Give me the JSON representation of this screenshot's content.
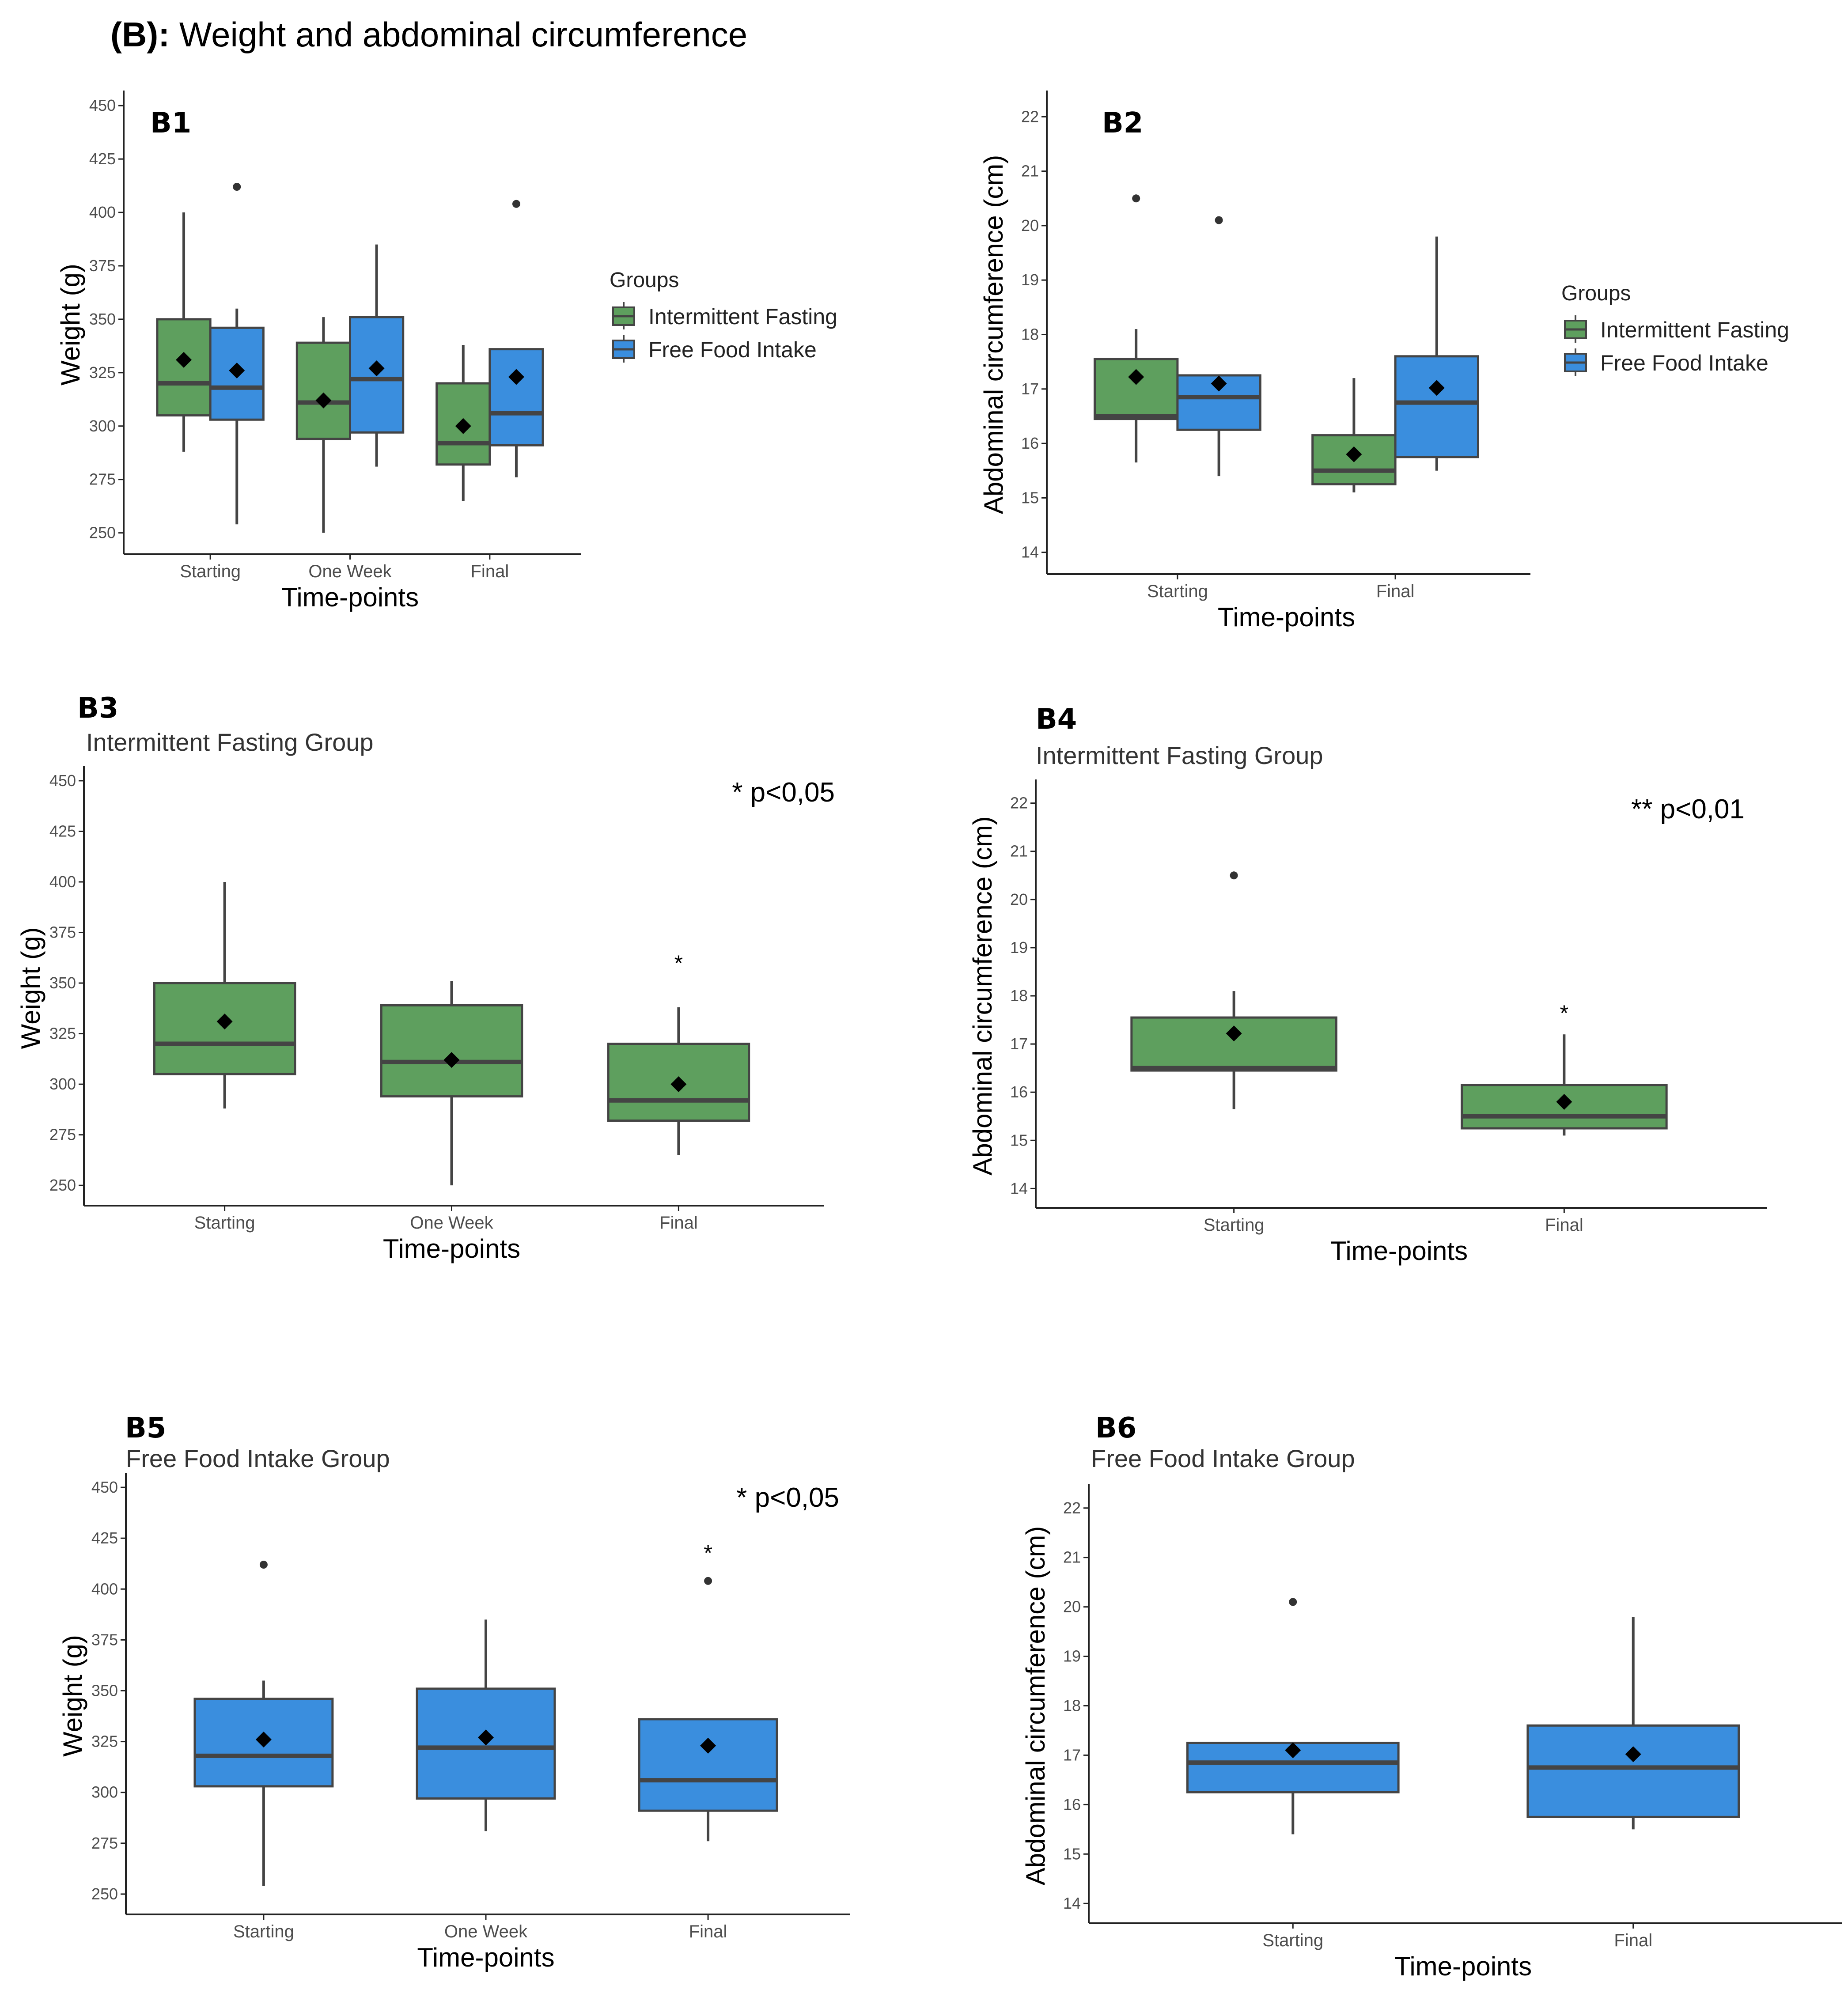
{
  "figure_title": {
    "prefix": "(B):",
    "text": " Weight and abdominal circumference"
  },
  "colors": {
    "if": "#5e9f5e",
    "ffi": "#3a8ede",
    "edge": "#444444",
    "axis": "#222222"
  },
  "chart_data": [
    {
      "panel": "B1",
      "type": "box",
      "subtitle": "",
      "xlabel": "Time-points",
      "ylabel": "Weight (g)",
      "ylim": [
        240,
        455
      ],
      "yticks": [
        "250",
        "275",
        "300",
        "325",
        "350",
        "375",
        "400",
        "425",
        "450"
      ],
      "categories": [
        "Starting",
        "One Week",
        "Final"
      ],
      "legend": {
        "title": "Groups",
        "position": "right",
        "items": [
          "Intermittent Fasting",
          "Free Food Intake"
        ]
      },
      "series": [
        {
          "name": "Intermittent Fasting",
          "color_key": "if",
          "boxes": [
            {
              "min": 288,
              "q1": 305,
              "median": 320,
              "q3": 350,
              "max": 400,
              "mean": 331,
              "outliers": []
            },
            {
              "min": 250,
              "q1": 294,
              "median": 311,
              "q3": 339,
              "max": 351,
              "mean": 312,
              "outliers": []
            },
            {
              "min": 265,
              "q1": 282,
              "median": 292,
              "q3": 320,
              "max": 338,
              "mean": 300,
              "outliers": []
            }
          ]
        },
        {
          "name": "Free Food Intake",
          "color_key": "ffi",
          "boxes": [
            {
              "min": 254,
              "q1": 303,
              "median": 318,
              "q3": 346,
              "max": 355,
              "mean": 326,
              "outliers": [
                412
              ]
            },
            {
              "min": 281,
              "q1": 297,
              "median": 322,
              "q3": 351,
              "max": 385,
              "mean": 327,
              "outliers": []
            },
            {
              "min": 276,
              "q1": 291,
              "median": 306,
              "q3": 336,
              "max": 336,
              "mean": 323,
              "outliers": [
                404
              ]
            }
          ]
        }
      ]
    },
    {
      "panel": "B2",
      "type": "box",
      "subtitle": "",
      "xlabel": "Time-points",
      "ylabel": "Abdominal circumference (cm)",
      "ylim": [
        13.6,
        22.4
      ],
      "yticks": [
        "14",
        "15",
        "16",
        "17",
        "18",
        "19",
        "20",
        "21",
        "22"
      ],
      "categories": [
        "Starting",
        "Final"
      ],
      "legend": {
        "title": "Groups",
        "position": "right",
        "items": [
          "Intermittent Fasting",
          "Free Food Intake"
        ]
      },
      "series": [
        {
          "name": "Intermittent Fasting",
          "color_key": "if",
          "boxes": [
            {
              "min": 15.65,
              "q1": 16.45,
              "median": 16.5,
              "q3": 17.55,
              "max": 18.1,
              "mean": 17.22,
              "outliers": [
                20.5
              ]
            },
            {
              "min": 15.1,
              "q1": 15.25,
              "median": 15.5,
              "q3": 16.15,
              "max": 17.2,
              "mean": 15.8,
              "outliers": []
            }
          ]
        },
        {
          "name": "Free Food Intake",
          "color_key": "ffi",
          "boxes": [
            {
              "min": 15.4,
              "q1": 16.25,
              "median": 16.85,
              "q3": 17.25,
              "max": 17.25,
              "mean": 17.1,
              "outliers": [
                20.1
              ]
            },
            {
              "min": 15.5,
              "q1": 15.75,
              "median": 16.75,
              "q3": 17.6,
              "max": 19.8,
              "mean": 17.02,
              "outliers": []
            }
          ]
        }
      ]
    },
    {
      "panel": "B3",
      "type": "box",
      "subtitle": "Intermittent Fasting Group",
      "xlabel": "Time-points",
      "ylabel": "Weight (g)",
      "ylim": [
        240,
        455
      ],
      "yticks": [
        "250",
        "275",
        "300",
        "325",
        "350",
        "375",
        "400",
        "425",
        "450"
      ],
      "categories": [
        "Starting",
        "One Week",
        "Final"
      ],
      "significance": "* p<0,05",
      "star_labels": [
        {
          "category": "Final",
          "text": "*",
          "value": 360
        }
      ],
      "series": [
        {
          "name": "Intermittent Fasting",
          "color_key": "if",
          "boxes": [
            {
              "min": 288,
              "q1": 305,
              "median": 320,
              "q3": 350,
              "max": 400,
              "mean": 331,
              "outliers": []
            },
            {
              "min": 250,
              "q1": 294,
              "median": 311,
              "q3": 339,
              "max": 351,
              "mean": 312,
              "outliers": []
            },
            {
              "min": 265,
              "q1": 282,
              "median": 292,
              "q3": 320,
              "max": 338,
              "mean": 300,
              "outliers": []
            }
          ]
        }
      ]
    },
    {
      "panel": "B4",
      "type": "box",
      "subtitle": "Intermittent Fasting Group",
      "xlabel": "Time-points",
      "ylabel": "Abdominal circumference (cm)",
      "ylim": [
        13.6,
        22.4
      ],
      "yticks": [
        "14",
        "15",
        "16",
        "17",
        "18",
        "19",
        "20",
        "21",
        "22"
      ],
      "categories": [
        "Starting",
        "Final"
      ],
      "significance": "** p<0,01",
      "star_labels": [
        {
          "category": "Final",
          "text": "*",
          "value": 17.65
        }
      ],
      "series": [
        {
          "name": "Intermittent Fasting",
          "color_key": "if",
          "boxes": [
            {
              "min": 15.65,
              "q1": 16.45,
              "median": 16.5,
              "q3": 17.55,
              "max": 18.1,
              "mean": 17.22,
              "outliers": [
                20.5
              ]
            },
            {
              "min": 15.1,
              "q1": 15.25,
              "median": 15.5,
              "q3": 16.15,
              "max": 17.2,
              "mean": 15.8,
              "outliers": []
            }
          ]
        }
      ]
    },
    {
      "panel": "B5",
      "type": "box",
      "subtitle": "Free Food Intake Group",
      "xlabel": "Time-points",
      "ylabel": "Weight (g)",
      "ylim": [
        240,
        455
      ],
      "yticks": [
        "250",
        "275",
        "300",
        "325",
        "350",
        "375",
        "400",
        "425",
        "450"
      ],
      "categories": [
        "Starting",
        "One Week",
        "Final"
      ],
      "significance": "* p<0,05",
      "star_labels": [
        {
          "category": "Final",
          "text": "*",
          "value": 418
        }
      ],
      "series": [
        {
          "name": "Free Food Intake",
          "color_key": "ffi",
          "boxes": [
            {
              "min": 254,
              "q1": 303,
              "median": 318,
              "q3": 346,
              "max": 355,
              "mean": 326,
              "outliers": [
                412
              ]
            },
            {
              "min": 281,
              "q1": 297,
              "median": 322,
              "q3": 351,
              "max": 385,
              "mean": 327,
              "outliers": []
            },
            {
              "min": 276,
              "q1": 291,
              "median": 306,
              "q3": 336,
              "max": 336,
              "mean": 323,
              "outliers": [
                404
              ]
            }
          ]
        }
      ]
    },
    {
      "panel": "B6",
      "type": "box",
      "subtitle": "Free Food Intake Group",
      "xlabel": "Time-points",
      "ylabel": "Abdominal circumference (cm)",
      "ylim": [
        13.6,
        22.4
      ],
      "yticks": [
        "14",
        "15",
        "16",
        "17",
        "18",
        "19",
        "20",
        "21",
        "22"
      ],
      "categories": [
        "Starting",
        "Final"
      ],
      "series": [
        {
          "name": "Free Food Intake",
          "color_key": "ffi",
          "boxes": [
            {
              "min": 15.4,
              "q1": 16.25,
              "median": 16.85,
              "q3": 17.25,
              "max": 17.25,
              "mean": 17.1,
              "outliers": [
                20.1
              ]
            },
            {
              "min": 15.5,
              "q1": 15.75,
              "median": 16.75,
              "q3": 17.6,
              "max": 19.8,
              "mean": 17.02,
              "outliers": []
            }
          ]
        }
      ]
    }
  ]
}
